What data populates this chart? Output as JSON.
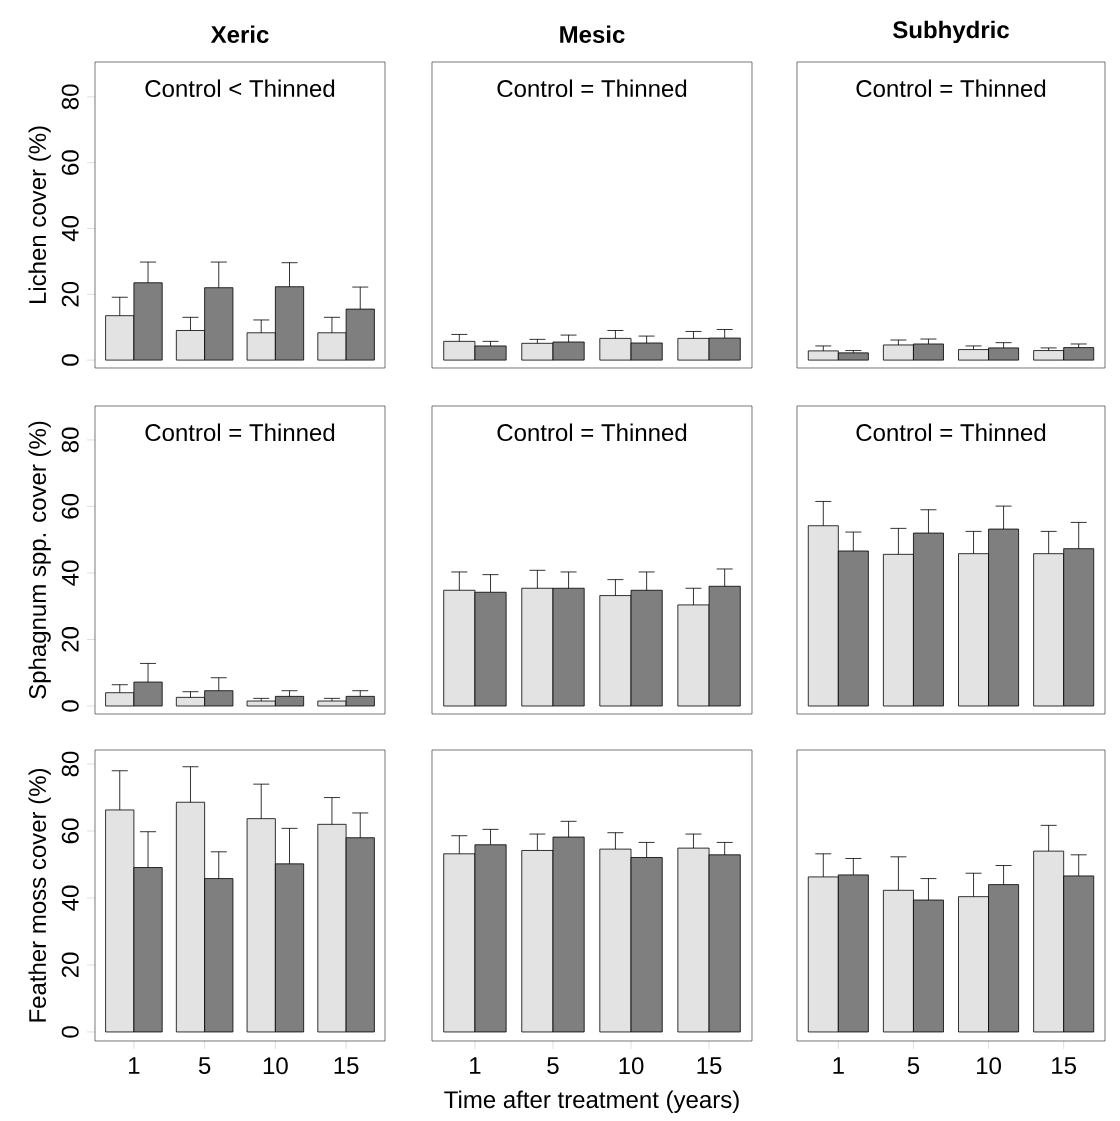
{
  "chart_data": [
    {
      "type": "bar",
      "title": "Xeric",
      "ylabel": "Lichen cover (%)",
      "annotations": [
        "Control < Thinned"
      ],
      "categories": [
        "1",
        "5",
        "10",
        "15"
      ],
      "ylim": [
        -2.4,
        90.6
      ],
      "yticks": [
        0,
        20,
        40,
        60,
        80
      ],
      "tick_labels": "y",
      "series": [
        {
          "color": "#e3e3e3",
          "values": [
            13.5,
            9,
            8.3,
            8.3
          ],
          "errors": [
            [
              13.5,
              19.1
            ],
            [
              9,
              13
            ],
            [
              8.3,
              12.2
            ],
            [
              8.3,
              13
            ]
          ]
        },
        {
          "color": "#7f7f7f",
          "values": [
            23.5,
            22,
            22.3,
            15.5
          ],
          "errors": [
            [
              23.5,
              29.8
            ],
            [
              22,
              29.8
            ],
            [
              22.3,
              29.6
            ],
            [
              15.5,
              22.2
            ]
          ]
        }
      ]
    },
    {
      "type": "bar",
      "title": "Mesic",
      "annotations": [
        "Control = Thinned"
      ],
      "categories": [
        "1",
        "5",
        "10",
        "15"
      ],
      "ylim": [
        -2.4,
        90.6
      ],
      "yticks": [
        0,
        20,
        40,
        60,
        80
      ],
      "tick_labels": false,
      "series": [
        {
          "color": "#e3e3e3",
          "values": [
            5.7,
            5.1,
            6.6,
            6.6
          ],
          "errors": [
            [
              5.7,
              7.8
            ],
            [
              5.1,
              6.3
            ],
            [
              6.6,
              9
            ],
            [
              6.6,
              8.7
            ]
          ]
        },
        {
          "color": "#7f7f7f",
          "values": [
            4.3,
            5.5,
            5.2,
            6.7
          ],
          "errors": [
            [
              4.3,
              5.7
            ],
            [
              5.5,
              7.6
            ],
            [
              5.2,
              7.3
            ],
            [
              6.7,
              9.3
            ]
          ]
        }
      ]
    },
    {
      "type": "bar",
      "title": "Subhydric",
      "annotations": [
        "Control = Thinned"
      ],
      "categories": [
        "1",
        "5",
        "10",
        "15"
      ],
      "ylim": [
        -2.4,
        90.6
      ],
      "yticks": [
        0,
        20,
        40,
        60,
        80
      ],
      "tick_labels": false,
      "series": [
        {
          "color": "#e3e3e3",
          "values": [
            2.8,
            4.6,
            3.2,
            2.9
          ],
          "errors": [
            [
              2.8,
              4.3
            ],
            [
              4.6,
              6.1
            ],
            [
              3.2,
              4.3
            ],
            [
              2.9,
              3.7
            ]
          ]
        },
        {
          "color": "#7f7f7f",
          "values": [
            2.2,
            4.9,
            3.7,
            3.8
          ],
          "errors": [
            [
              2.2,
              2.9
            ],
            [
              4.9,
              6.4
            ],
            [
              3.7,
              5.3
            ],
            [
              3.8,
              4.9
            ]
          ]
        }
      ]
    },
    {
      "type": "bar",
      "ylabel": "Sphagnum spp. cover (%)",
      "annotations": [
        "Control = Thinned"
      ],
      "categories": [
        "1",
        "5",
        "10",
        "15"
      ],
      "ylim": [
        -2.4,
        90.2
      ],
      "yticks": [
        0,
        20,
        40,
        60,
        80
      ],
      "tick_labels": "y",
      "series": [
        {
          "color": "#e3e3e3",
          "values": [
            4.0,
            2.6,
            1.5,
            1.5
          ],
          "errors": [
            [
              4.0,
              6.4
            ],
            [
              2.6,
              4.3
            ],
            [
              1.5,
              2.3
            ],
            [
              1.5,
              2.3
            ]
          ]
        },
        {
          "color": "#7f7f7f",
          "values": [
            7.2,
            4.6,
            2.9,
            2.9
          ],
          "errors": [
            [
              7.2,
              12.8
            ],
            [
              4.6,
              8.5
            ],
            [
              2.9,
              4.6
            ],
            [
              2.9,
              4.6
            ]
          ]
        }
      ]
    },
    {
      "type": "bar",
      "annotations": [
        "Control = Thinned"
      ],
      "categories": [
        "1",
        "5",
        "10",
        "15"
      ],
      "ylim": [
        -2.4,
        90.2
      ],
      "yticks": [
        0,
        20,
        40,
        60,
        80
      ],
      "tick_labels": false,
      "series": [
        {
          "color": "#e3e3e3",
          "values": [
            34.8,
            35.4,
            33.2,
            30.4
          ],
          "errors": [
            [
              34.8,
              40.3
            ],
            [
              35.4,
              40.8
            ],
            [
              33.2,
              38
            ],
            [
              30.4,
              35.4
            ]
          ]
        },
        {
          "color": "#7f7f7f",
          "values": [
            34.2,
            35.4,
            34.8,
            36
          ],
          "errors": [
            [
              34.2,
              39.5
            ],
            [
              35.4,
              40.3
            ],
            [
              34.8,
              40.3
            ],
            [
              36,
              41.2
            ]
          ]
        }
      ]
    },
    {
      "type": "bar",
      "annotations": [
        "Control = Thinned"
      ],
      "categories": [
        "1",
        "5",
        "10",
        "15"
      ],
      "ylim": [
        -2.4,
        90.2
      ],
      "yticks": [
        0,
        20,
        40,
        60,
        80
      ],
      "tick_labels": false,
      "series": [
        {
          "color": "#e3e3e3",
          "values": [
            54.2,
            45.6,
            45.8,
            45.8
          ],
          "errors": [
            [
              54.2,
              61.5
            ],
            [
              45.6,
              53.4
            ],
            [
              45.8,
              52.5
            ],
            [
              45.8,
              52.5
            ]
          ]
        },
        {
          "color": "#7f7f7f",
          "values": [
            46.6,
            52,
            53.2,
            47.3
          ],
          "errors": [
            [
              46.6,
              52.3
            ],
            [
              52,
              59
            ],
            [
              53.2,
              60.1
            ],
            [
              47.3,
              55.2
            ]
          ]
        }
      ]
    },
    {
      "type": "bar",
      "ylabel": "Feather moss cover (%)",
      "categories": [
        "1",
        "5",
        "10",
        "15"
      ],
      "ylim": [
        -2.7,
        84.2
      ],
      "yticks": [
        0,
        20,
        40,
        60,
        80
      ],
      "series": [
        {
          "color": "#e3e3e3",
          "values": [
            66.3,
            68.6,
            63.7,
            62
          ],
          "errors": [
            [
              66.3,
              78
            ],
            [
              68.6,
              79.2
            ],
            [
              63.7,
              74
            ],
            [
              62,
              70
            ]
          ]
        },
        {
          "color": "#7f7f7f",
          "values": [
            49.1,
            45.8,
            50.2,
            58
          ],
          "errors": [
            [
              49.1,
              59.8
            ],
            [
              45.8,
              53.8
            ],
            [
              50.2,
              60.8
            ],
            [
              58,
              65.4
            ]
          ]
        }
      ]
    },
    {
      "type": "bar",
      "xlabel": "Time after treatment (years)",
      "categories": [
        "1",
        "5",
        "10",
        "15"
      ],
      "ylim": [
        -2.7,
        84.2
      ],
      "yticks": [
        0,
        20,
        40,
        60,
        80
      ],
      "tick_labels": "x",
      "series": [
        {
          "color": "#e3e3e3",
          "values": [
            53.2,
            54.2,
            54.6,
            54.9
          ],
          "errors": [
            [
              53.2,
              58.6
            ],
            [
              54.2,
              59.1
            ],
            [
              54.6,
              59.5
            ],
            [
              54.9,
              59.1
            ]
          ]
        },
        {
          "color": "#7f7f7f",
          "values": [
            55.9,
            58.2,
            52.1,
            52.9
          ],
          "errors": [
            [
              55.9,
              60.5
            ],
            [
              58.2,
              62.9
            ],
            [
              52.1,
              56.6
            ],
            [
              52.9,
              56.6
            ]
          ]
        }
      ]
    },
    {
      "type": "bar",
      "categories": [
        "1",
        "5",
        "10",
        "15"
      ],
      "ylim": [
        -2.7,
        84.2
      ],
      "yticks": [
        0,
        20,
        40,
        60,
        80
      ],
      "tick_labels": "x",
      "series": [
        {
          "color": "#e3e3e3",
          "values": [
            46.3,
            42.3,
            40.4,
            54
          ],
          "errors": [
            [
              46.3,
              53.2
            ],
            [
              42.3,
              52.3
            ],
            [
              40.4,
              47.4
            ],
            [
              54,
              61.7
            ]
          ]
        },
        {
          "color": "#7f7f7f",
          "values": [
            46.9,
            39.4,
            44,
            46.6
          ],
          "errors": [
            [
              46.9,
              51.8
            ],
            [
              39.4,
              45.8
            ],
            [
              44,
              49.7
            ],
            [
              46.6,
              52.9
            ]
          ]
        }
      ]
    }
  ]
}
